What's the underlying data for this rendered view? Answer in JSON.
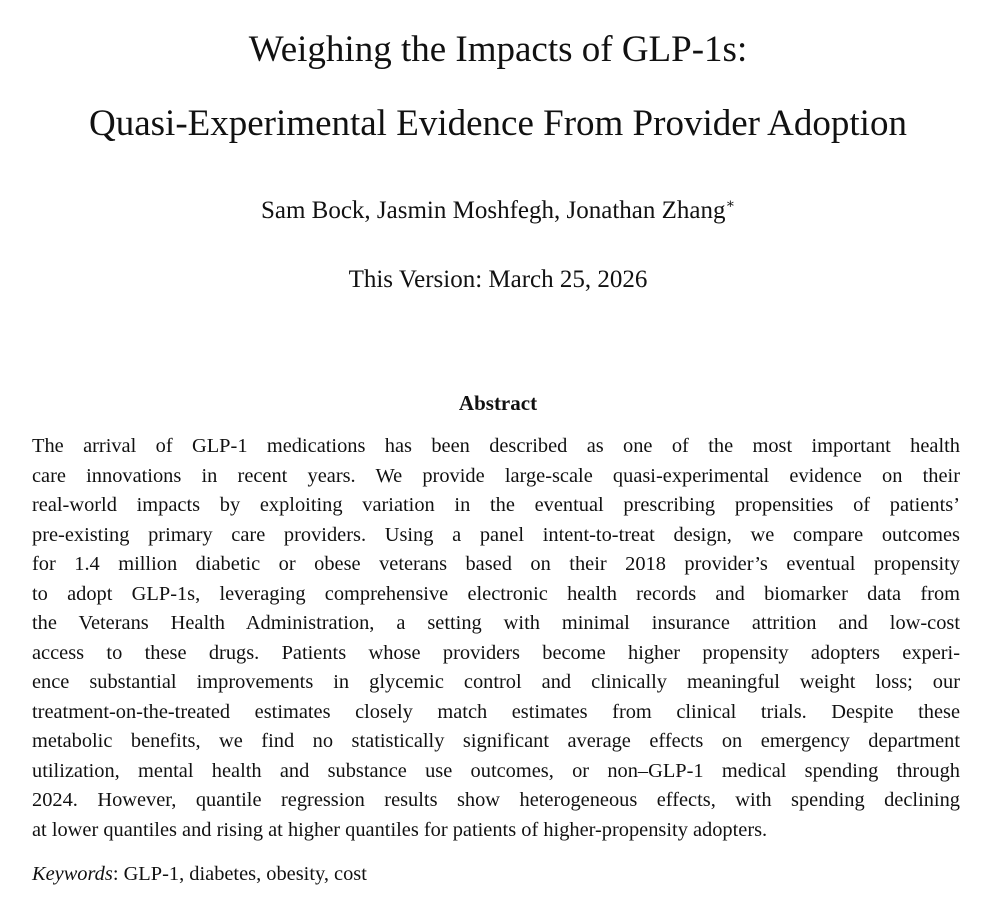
{
  "paper": {
    "title_line_1": "Weighing the Impacts of GLP-1s:",
    "title_line_2": "Quasi-Experimental Evidence From Provider Adoption",
    "authors": "Sam Bock, Jasmin Moshfegh, Jonathan Zhang",
    "authors_footnote_mark": "∗",
    "version": "This Version: March 25, 2026",
    "abstract_heading": "Abstract",
    "abstract_lines": [
      "The arrival of GLP-1 medications has been described as one of the most important health",
      "care innovations in recent years. We provide large-scale quasi-experimental evidence on their",
      "real-world impacts by exploiting variation in the eventual prescribing propensities of patients’",
      "pre-existing primary care providers. Using a panel intent-to-treat design, we compare outcomes",
      "for 1.4 million diabetic or obese veterans based on their 2018 provider’s eventual propensity",
      "to adopt GLP-1s, leveraging comprehensive electronic health records and biomarker data from",
      "the Veterans Health Administration, a setting with minimal insurance attrition and low-cost",
      "access to these drugs. Patients whose providers become higher propensity adopters experi-",
      "ence substantial improvements in glycemic control and clinically meaningful weight loss; our",
      "treatment-on-the-treated estimates closely match estimates from clinical trials. Despite these",
      "metabolic benefits, we find no statistically significant average effects on emergency department",
      "utilization, mental health and substance use outcomes, or non–GLP-1 medical spending through",
      "2024. However, quantile regression results show heterogeneous effects, with spending declining",
      "at lower quantiles and rising at higher quantiles for patients of higher-propensity adopters."
    ],
    "keywords_label": "Keywords",
    "keywords_separator": ": ",
    "keywords": "GLP-1, diabetes, obesity, cost"
  }
}
